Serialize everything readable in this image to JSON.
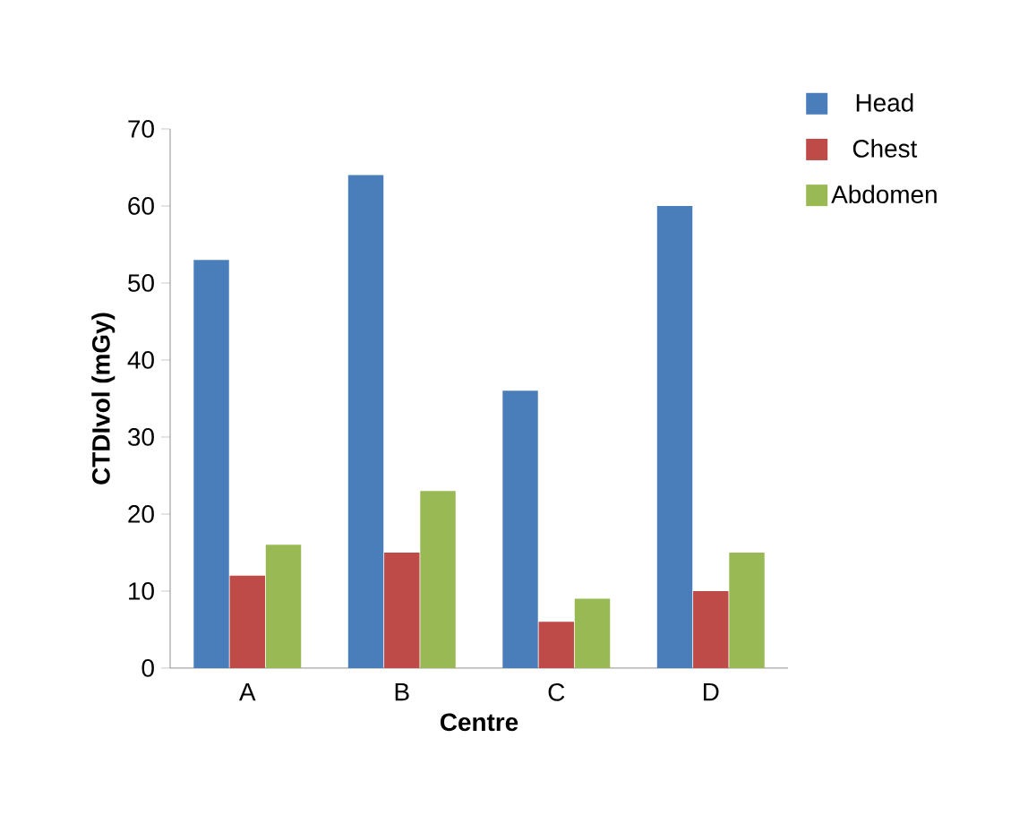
{
  "chart_data": {
    "type": "bar",
    "xlabel": "Centre",
    "ylabel": "CTDIvol (mGy)",
    "categories": [
      "A",
      "B",
      "C",
      "D"
    ],
    "series": [
      {
        "name": "Head",
        "color": "#4a7ebb",
        "values": [
          53,
          64,
          36,
          60
        ]
      },
      {
        "name": "Chest",
        "color": "#be4b48",
        "values": [
          12,
          15,
          6,
          10
        ]
      },
      {
        "name": "Abdomen",
        "color": "#98b954",
        "values": [
          16,
          23,
          9,
          15
        ]
      }
    ],
    "ylim": [
      0,
      70
    ],
    "yticks": [
      0,
      10,
      20,
      30,
      40,
      50,
      60,
      70
    ],
    "legend": "right"
  }
}
